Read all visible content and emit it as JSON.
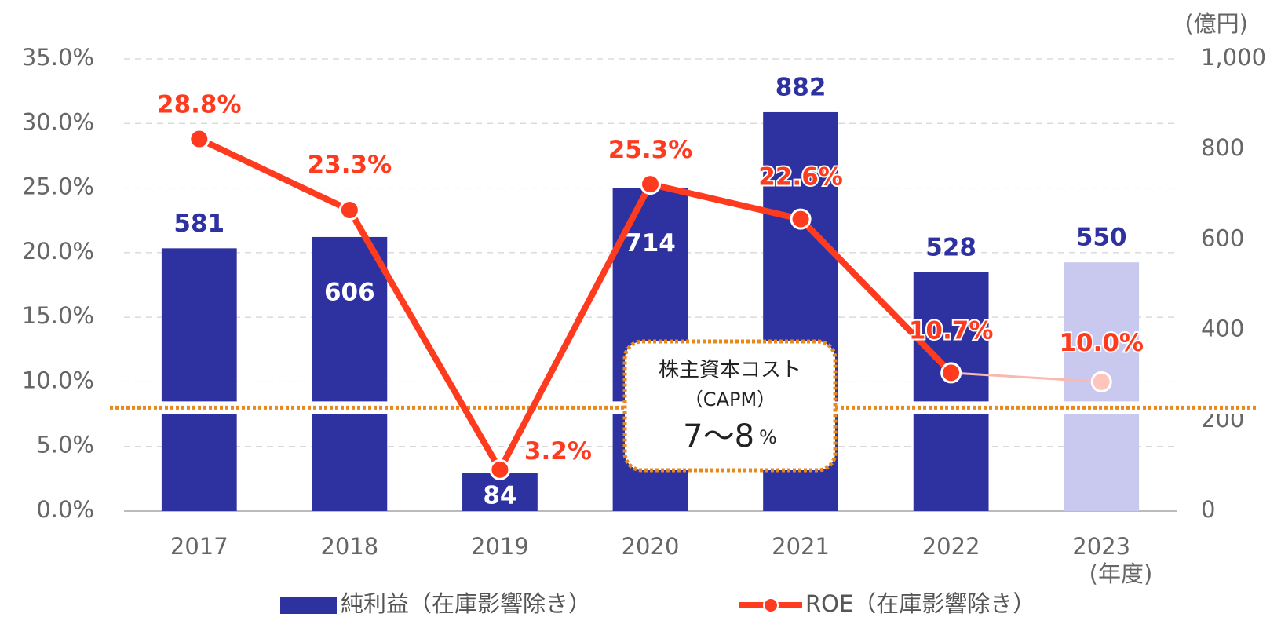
{
  "chart_data": {
    "type": "bar_line",
    "categories": [
      "2017",
      "2018",
      "2019",
      "2020",
      "2021",
      "2022",
      "2023"
    ],
    "x_unit": "(年度)",
    "y2_unit": "(億円)",
    "series": [
      {
        "name": "純利益（在庫影響除き）",
        "type": "bar",
        "axis": "y2",
        "color": "#2e31a0",
        "colors": [
          "#2e31a0",
          "#2e31a0",
          "#2e31a0",
          "#2e31a0",
          "#2e31a0",
          "#2e31a0",
          "#c9c9ef"
        ],
        "values": [
          581,
          606,
          84,
          714,
          882,
          528,
          550
        ]
      },
      {
        "name": "ROE（在庫影響除き）",
        "type": "line",
        "axis": "y",
        "color": "#ff3b1f",
        "colors": [
          "#ff3b1f",
          "#ff3b1f",
          "#ff3b1f",
          "#ff3b1f",
          "#ff3b1f",
          "#ff3b1f",
          "#ffc4bc"
        ],
        "values": [
          28.8,
          23.3,
          3.2,
          25.3,
          22.6,
          10.7,
          10.0
        ],
        "value_labels": [
          "28.8%",
          "23.3%",
          "3.2%",
          "25.3%",
          "22.6%",
          "10.7%",
          "10.0%"
        ]
      }
    ],
    "ylim": [
      0,
      35
    ],
    "yticks": [
      {
        "value": 0,
        "label": "0.0%"
      },
      {
        "value": 5,
        "label": "5.0%"
      },
      {
        "value": 10,
        "label": "10.0%"
      },
      {
        "value": 15,
        "label": "15.0%"
      },
      {
        "value": 20,
        "label": "20.0%"
      },
      {
        "value": 25,
        "label": "25.0%"
      },
      {
        "value": 30,
        "label": "30.0%"
      },
      {
        "value": 35,
        "label": "35.0%"
      }
    ],
    "y2lim": [
      0,
      1000
    ],
    "y2ticks": [
      0,
      200,
      400,
      600,
      800,
      {
        "value": 1000,
        "label": "1,000"
      }
    ],
    "grid": true,
    "reference_line": {
      "value": 8,
      "color": "#e8891e"
    },
    "annotation": {
      "title": "株主資本コスト",
      "subtitle": "（CAPM）",
      "value": "7～8",
      "unit": "%"
    }
  }
}
